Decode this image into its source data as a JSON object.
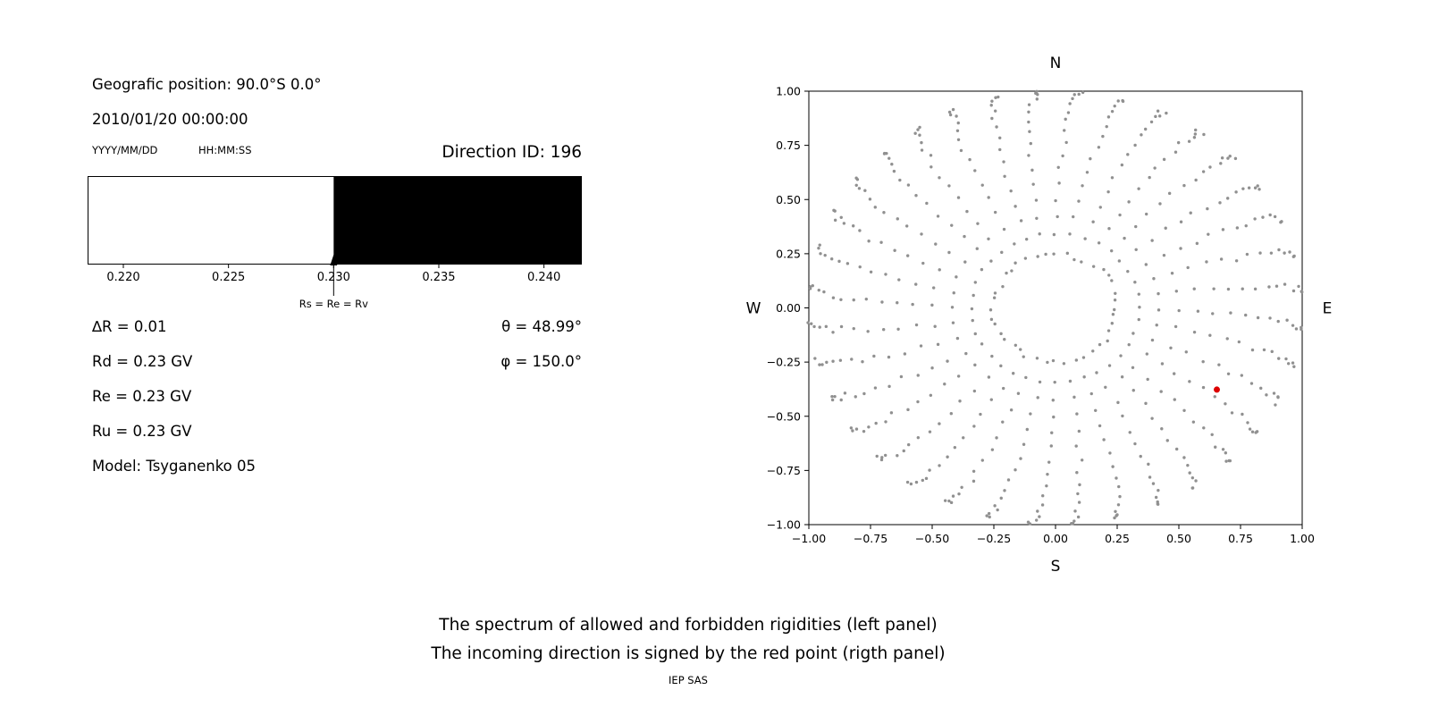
{
  "colors": {
    "background": "#ffffff",
    "text": "#000000",
    "dot_gray": "#909090",
    "red_point": "#dd0000",
    "forbidden_fill": "#000000",
    "allowed_fill": "#ffffff"
  },
  "left_panel": {
    "position_label": "Geografic position: 90.0°S 0.0°",
    "datetime": "2010/01/20 00:00:00",
    "date_format_hint": "YYYY/MM/DD",
    "time_format_hint": "HH:MM:SS",
    "direction_id": "Direction ID: 196",
    "arrow_label": "Rs = Re = Rv",
    "params": [
      {
        "left": "∆R = 0.01",
        "right": "θ = 48.99°"
      },
      {
        "left": "Rd = 0.23 GV",
        "right": "φ = 150.0°"
      },
      {
        "left": "Re = 0.23 GV",
        "right": ""
      },
      {
        "left": "Ru = 0.23 GV",
        "right": ""
      },
      {
        "left": "Model: Tsyganenko 05",
        "right": ""
      }
    ]
  },
  "captions": {
    "line1": "The spectrum of allowed and forbidden rigidities (left panel)",
    "line2": "The incoming direction is signed by the red point (rigth panel)",
    "credit": "IEP SAS"
  },
  "chart_data": [
    {
      "type": "area",
      "title": "",
      "x_range": [
        0.2183,
        0.2418
      ],
      "x_ticks": [
        0.22,
        0.225,
        0.23,
        0.235,
        0.24
      ],
      "x_tick_labels": [
        "0.220",
        "0.225",
        "0.230",
        "0.235",
        "0.240"
      ],
      "boundary_rigidity": 0.23,
      "regions": [
        {
          "name": "allowed",
          "from": 0.2183,
          "to": 0.23,
          "color": "#ffffff"
        },
        {
          "name": "forbidden",
          "from": 0.23,
          "to": 0.2418,
          "color": "#000000"
        }
      ],
      "annotation": {
        "text": "Rs = Re = Rv",
        "x": 0.23
      }
    },
    {
      "type": "scatter",
      "xlim": [
        -1.0,
        1.0
      ],
      "ylim": [
        -1.0,
        1.0
      ],
      "x_ticks": [
        -1.0,
        -0.75,
        -0.5,
        -0.25,
        0.0,
        0.25,
        0.5,
        0.75,
        1.0
      ],
      "y_ticks": [
        -1.0,
        -0.75,
        -0.5,
        -0.25,
        0.0,
        0.25,
        0.5,
        0.75,
        1.0
      ],
      "x_tick_labels": [
        "−1.00",
        "−0.75",
        "−0.50",
        "−0.25",
        "0.00",
        "0.25",
        "0.50",
        "0.75",
        "1.00"
      ],
      "y_tick_labels": [
        "−1.00",
        "−0.75",
        "−0.50",
        "−0.25",
        "0.00",
        "0.25",
        "0.50",
        "0.75",
        "1.00"
      ],
      "compass": {
        "top": "N",
        "bottom": "S",
        "left": "W",
        "right": "E"
      },
      "grid_dots": {
        "azimuth_count": 36,
        "azimuth_step_deg": 10,
        "zenith_deg": [
          20,
          25,
          30,
          35,
          40,
          45,
          50,
          55,
          60,
          65,
          70,
          75,
          80,
          85,
          90
        ],
        "radius_rule": "sin(zenith)",
        "curve_deg": 6,
        "color": "#909090"
      },
      "inner_ring": {
        "radius": 0.25,
        "count": 40
      },
      "red_point": {
        "x": 0.654,
        "y": -0.377,
        "color": "#dd0000"
      }
    }
  ]
}
